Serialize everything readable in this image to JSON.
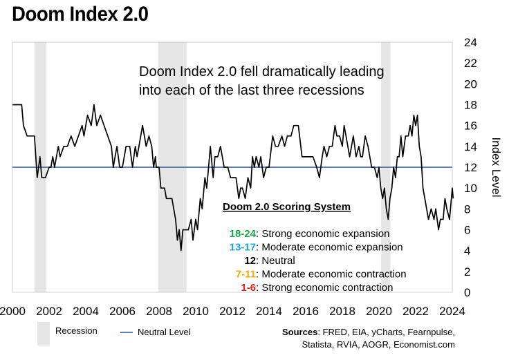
{
  "page": {
    "title": "Doom Index 2.0"
  },
  "chart_data": {
    "type": "line",
    "title": "Doom Index 2.0",
    "ylabel": "Index Level",
    "xlabel": "",
    "xlim": [
      2000,
      2024
    ],
    "ylim": [
      0,
      24
    ],
    "x_ticks": [
      "2000",
      "2002",
      "2004",
      "2006",
      "2008",
      "2010",
      "2012",
      "2014",
      "2016",
      "2018",
      "2020",
      "2022",
      "2024"
    ],
    "y_ticks": [
      "0",
      "2",
      "4",
      "6",
      "8",
      "10",
      "12",
      "14",
      "16",
      "18",
      "20",
      "22",
      "24"
    ],
    "grid": false,
    "series": [
      {
        "color": "#000000",
        "points": [
          [
            2000.0,
            18
          ],
          [
            2000.5,
            18
          ],
          [
            2000.6,
            16
          ],
          [
            2000.8,
            15
          ],
          [
            2001.2,
            15
          ],
          [
            2001.35,
            11
          ],
          [
            2001.5,
            13
          ],
          [
            2001.6,
            11
          ],
          [
            2001.8,
            11
          ],
          [
            2002.0,
            12
          ],
          [
            2002.1,
            12
          ],
          [
            2002.2,
            13
          ],
          [
            2002.3,
            12
          ],
          [
            2002.5,
            14
          ],
          [
            2002.6,
            13
          ],
          [
            2002.8,
            14
          ],
          [
            2003.0,
            14
          ],
          [
            2003.2,
            15
          ],
          [
            2003.4,
            14
          ],
          [
            2003.6,
            15
          ],
          [
            2003.8,
            16
          ],
          [
            2003.9,
            15
          ],
          [
            2004.1,
            17
          ],
          [
            2004.3,
            16
          ],
          [
            2004.45,
            18
          ],
          [
            2004.6,
            16
          ],
          [
            2004.8,
            17
          ],
          [
            2005.0,
            16
          ],
          [
            2005.2,
            15
          ],
          [
            2005.4,
            14
          ],
          [
            2005.5,
            12
          ],
          [
            2005.6,
            13
          ],
          [
            2005.7,
            14
          ],
          [
            2005.85,
            12
          ],
          [
            2006.0,
            12
          ],
          [
            2006.2,
            14
          ],
          [
            2006.4,
            14
          ],
          [
            2006.55,
            12
          ],
          [
            2006.7,
            14
          ],
          [
            2006.8,
            13
          ],
          [
            2006.9,
            14
          ],
          [
            2007.1,
            16
          ],
          [
            2007.3,
            14
          ],
          [
            2007.45,
            15
          ],
          [
            2007.6,
            14
          ],
          [
            2007.7,
            12
          ],
          [
            2007.8,
            13
          ],
          [
            2007.85,
            12
          ],
          [
            2008.0,
            12
          ],
          [
            2008.1,
            10
          ],
          [
            2008.3,
            10
          ],
          [
            2008.4,
            9
          ],
          [
            2008.7,
            9
          ],
          [
            2008.8,
            8
          ],
          [
            2008.9,
            7
          ],
          [
            2009.0,
            5
          ],
          [
            2009.1,
            6
          ],
          [
            2009.2,
            4
          ],
          [
            2009.3,
            6
          ],
          [
            2009.6,
            6
          ],
          [
            2009.75,
            7
          ],
          [
            2009.85,
            5
          ],
          [
            2010.0,
            7
          ],
          [
            2010.1,
            6
          ],
          [
            2010.25,
            9
          ],
          [
            2010.35,
            8
          ],
          [
            2010.5,
            11
          ],
          [
            2010.6,
            10
          ],
          [
            2010.7,
            12
          ],
          [
            2010.8,
            14
          ],
          [
            2010.95,
            11
          ],
          [
            2011.05,
            13
          ],
          [
            2011.2,
            13
          ],
          [
            2011.35,
            14
          ],
          [
            2011.55,
            12
          ],
          [
            2011.75,
            12
          ],
          [
            2011.9,
            11
          ],
          [
            2012.0,
            11
          ],
          [
            2012.2,
            11
          ],
          [
            2012.35,
            9
          ],
          [
            2012.45,
            10
          ],
          [
            2012.55,
            10
          ],
          [
            2012.7,
            9
          ],
          [
            2012.85,
            11
          ],
          [
            2013.0,
            10
          ],
          [
            2013.1,
            13
          ],
          [
            2013.2,
            12
          ],
          [
            2013.3,
            13
          ],
          [
            2013.45,
            12
          ],
          [
            2013.55,
            13
          ],
          [
            2013.7,
            11
          ],
          [
            2013.85,
            12
          ],
          [
            2014.0,
            12
          ],
          [
            2014.2,
            15
          ],
          [
            2014.35,
            14
          ],
          [
            2014.5,
            14
          ],
          [
            2014.7,
            15
          ],
          [
            2014.85,
            14
          ],
          [
            2015.0,
            15
          ],
          [
            2015.2,
            15
          ],
          [
            2015.35,
            16
          ],
          [
            2015.6,
            16
          ],
          [
            2015.8,
            13
          ],
          [
            2016.0,
            13
          ],
          [
            2016.4,
            13
          ],
          [
            2016.6,
            12
          ],
          [
            2016.75,
            11
          ],
          [
            2016.9,
            13
          ],
          [
            2017.0,
            14
          ],
          [
            2017.15,
            13
          ],
          [
            2017.3,
            14
          ],
          [
            2017.45,
            14
          ],
          [
            2017.6,
            16
          ],
          [
            2017.7,
            15
          ],
          [
            2017.85,
            15
          ],
          [
            2018.0,
            14
          ],
          [
            2018.1,
            16
          ],
          [
            2018.2,
            15
          ],
          [
            2018.4,
            13
          ],
          [
            2018.6,
            15
          ],
          [
            2018.75,
            13
          ],
          [
            2018.9,
            14
          ],
          [
            2019.0,
            13
          ],
          [
            2019.1,
            13
          ],
          [
            2019.25,
            15
          ],
          [
            2019.4,
            14
          ],
          [
            2019.6,
            12
          ],
          [
            2019.75,
            12
          ],
          [
            2019.9,
            11
          ],
          [
            2020.0,
            12
          ],
          [
            2020.1,
            10
          ],
          [
            2020.2,
            9
          ],
          [
            2020.3,
            10
          ],
          [
            2020.4,
            8
          ],
          [
            2020.5,
            7
          ],
          [
            2020.6,
            9
          ],
          [
            2020.7,
            10
          ],
          [
            2020.8,
            12
          ],
          [
            2020.9,
            11
          ],
          [
            2021.0,
            13
          ],
          [
            2021.1,
            13
          ],
          [
            2021.2,
            15
          ],
          [
            2021.3,
            13
          ],
          [
            2021.45,
            15
          ],
          [
            2021.6,
            15
          ],
          [
            2021.7,
            16
          ],
          [
            2021.8,
            15
          ],
          [
            2021.9,
            17
          ],
          [
            2022.0,
            16
          ],
          [
            2022.1,
            17
          ],
          [
            2022.2,
            14
          ],
          [
            2022.3,
            13
          ],
          [
            2022.4,
            10
          ],
          [
            2022.5,
            9
          ],
          [
            2022.6,
            8
          ],
          [
            2022.7,
            7
          ],
          [
            2022.85,
            8
          ],
          [
            2023.0,
            7
          ],
          [
            2023.1,
            8
          ],
          [
            2023.25,
            6
          ],
          [
            2023.35,
            7
          ],
          [
            2023.5,
            7
          ],
          [
            2023.6,
            9
          ],
          [
            2023.7,
            8
          ],
          [
            2023.85,
            7
          ],
          [
            2024.0,
            10
          ],
          [
            2024.05,
            9
          ]
        ]
      }
    ],
    "neutral_level": 12,
    "recessions": [
      [
        2001.2,
        2001.85
      ],
      [
        2007.95,
        2009.5
      ],
      [
        2020.12,
        2020.62
      ]
    ],
    "annotation": [
      "Doom Index 2.0 fell dramatically leading",
      "into each of the last three recessions"
    ],
    "scoring_system": {
      "title": "Doom 2.0 Scoring System",
      "items": [
        {
          "range": "18-24",
          "label": ": Strong economic expansion",
          "color": "#1aa64a"
        },
        {
          "range": "13-17",
          "label": ": Moderate economic expansion",
          "color": "#1fa3d6"
        },
        {
          "range": "12",
          "label": ": Neutral",
          "color": "#000000"
        },
        {
          "range": "7-11",
          "label": ": Moderate economic contraction",
          "color": "#f2a900"
        },
        {
          "range": "1-6",
          "label": ": Strong economic contraction",
          "color": "#e0201c"
        }
      ]
    },
    "legend": {
      "recession": "Recession",
      "neutral": "Neutral Level"
    },
    "sources": {
      "prefix": "Sources",
      "line1": ": FRED, EIA, yCharts, Fearnpulse,",
      "line2": "Statista, RVIA, AOGR, Economist.com"
    },
    "colors": {
      "recession": "#e6e6e6",
      "neutral": "#4a6fa5",
      "line": "#000000"
    }
  }
}
